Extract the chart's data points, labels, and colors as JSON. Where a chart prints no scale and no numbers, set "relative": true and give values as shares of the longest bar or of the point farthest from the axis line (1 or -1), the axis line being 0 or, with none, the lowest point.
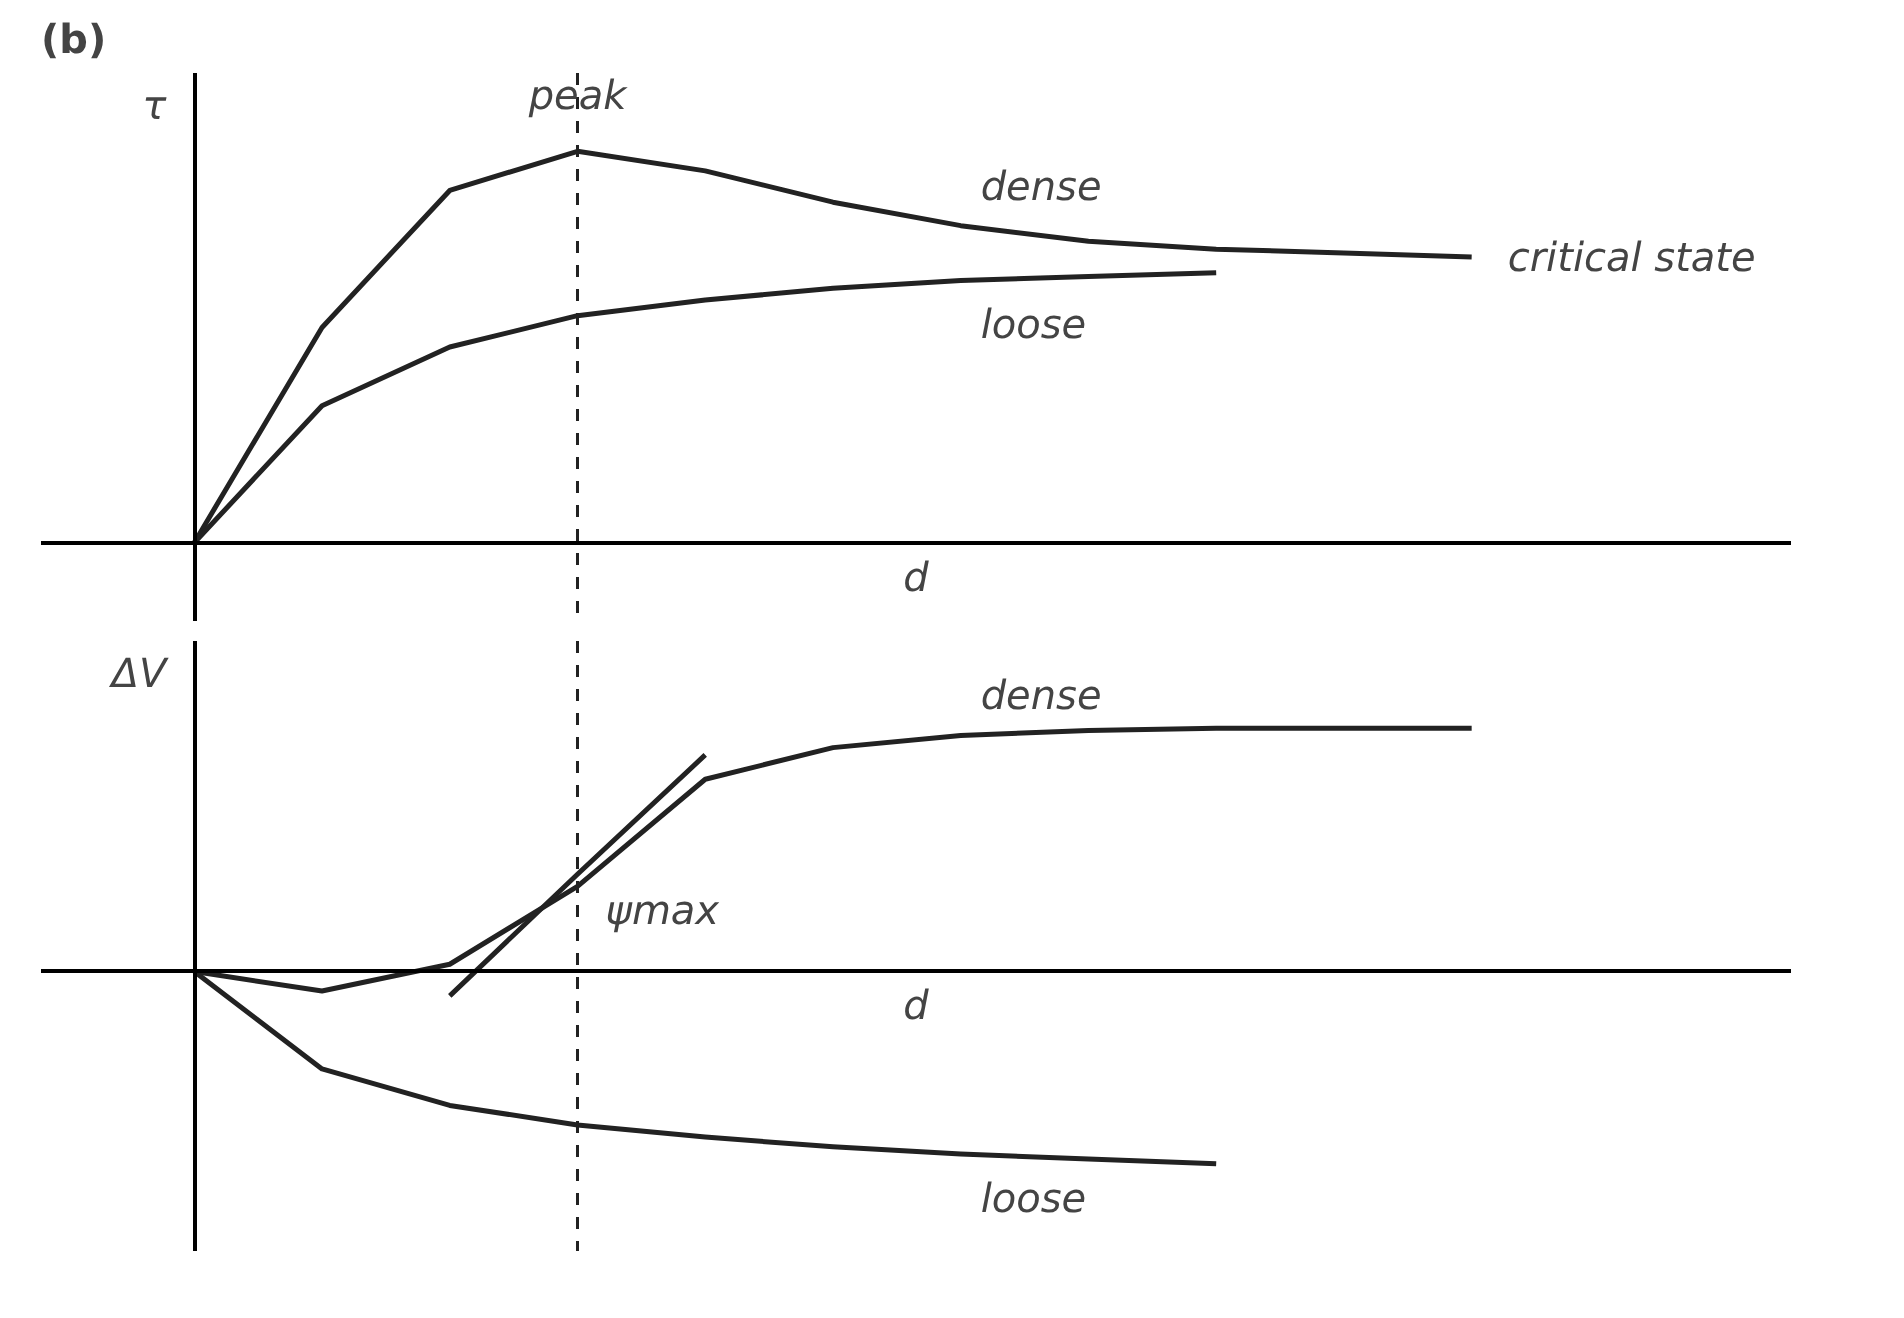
{
  "chart_data": [
    {
      "type": "line",
      "title": "(b)",
      "ylabel": "τ",
      "xlabel": "d",
      "relative": true,
      "tick_labels": false,
      "grid": false,
      "legend": false,
      "categories": [
        null,
        null,
        null,
        null,
        null,
        null,
        null,
        null,
        null,
        null,
        null
      ],
      "series": [
        {
          "name": "dense",
          "color": "#222222",
          "values": [
            0,
            0.55,
            0.9,
            1.0,
            0.95,
            0.87,
            0.81,
            0.77,
            0.75,
            0.74,
            0.73
          ]
        },
        {
          "name": "loose",
          "color": "#222222",
          "values": [
            0,
            0.35,
            0.5,
            0.58,
            0.62,
            0.65,
            0.67,
            0.68,
            0.69,
            null,
            null
          ]
        }
      ],
      "annotations": [
        "peak",
        "critical state"
      ]
    },
    {
      "type": "line",
      "ylabel": "ΔV",
      "xlabel": "d",
      "relative": true,
      "tick_labels": false,
      "grid": false,
      "legend": false,
      "categories": [
        null,
        null,
        null,
        null,
        null,
        null,
        null,
        null,
        null,
        null,
        null
      ],
      "series": [
        {
          "name": "dense",
          "color": "#222222",
          "values": [
            0,
            -0.08,
            0.03,
            0.35,
            0.79,
            0.92,
            0.97,
            0.99,
            1.0,
            1.0,
            1.0
          ]
        },
        {
          "name": "loose",
          "color": "#222222",
          "values": [
            0,
            -0.4,
            -0.55,
            -0.63,
            -0.68,
            -0.72,
            -0.75,
            -0.77,
            -0.79,
            null,
            null
          ]
        },
        {
          "color": "#222222",
          "values": [
            null,
            null,
            -0.1,
            0.4,
            0.89,
            null,
            null,
            null,
            null,
            null,
            null
          ]
        }
      ],
      "annotations": [
        "ψmax"
      ]
    }
  ]
}
